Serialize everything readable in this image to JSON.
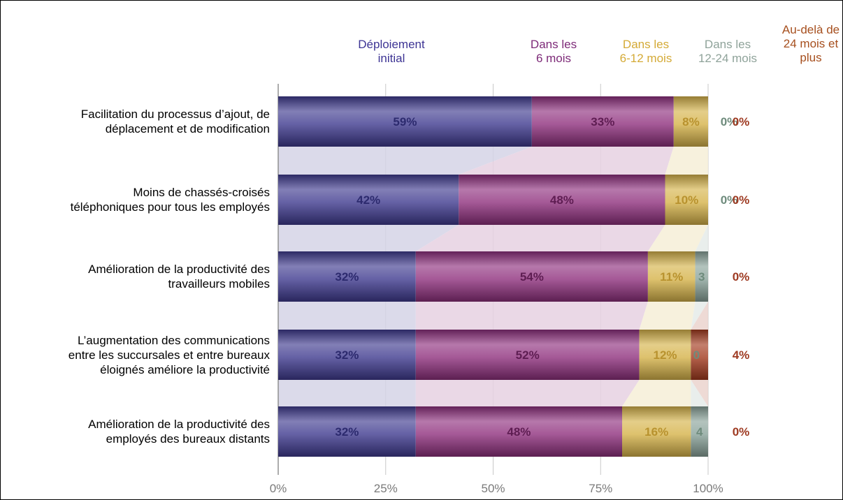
{
  "chart_data": {
    "type": "bar",
    "orientation": "horizontal",
    "stacked": true,
    "categories": [
      "Facilitation du processus d’ajout, de\ndéplacement et de modification",
      "Moins de chassés-croisés\ntéléphoniques pour tous les employés",
      "Amélioration de la productivité des\ntravailleurs mobiles",
      "L’augmentation des communications\nentre les succursales et entre bureaux\néloignés améliore la productivité",
      "Amélioration de la productivité des\nemployés des bureaux distants"
    ],
    "series": [
      {
        "name": "Déploiement\ninitial",
        "color": "#3f3a8f",
        "values": [
          59,
          42,
          32,
          32,
          32
        ],
        "labels": [
          "59%",
          "42%",
          "32%",
          "32%",
          "32%"
        ]
      },
      {
        "name": "Dans les\n6 mois",
        "color": "#8e2f7d",
        "values": [
          33,
          48,
          54,
          52,
          48
        ],
        "labels": [
          "33%",
          "48%",
          "54%",
          "52%",
          "48%"
        ]
      },
      {
        "name": "Dans les\n6-12 mois",
        "color": "#d6b34a",
        "values": [
          8,
          10,
          11,
          12,
          16
        ],
        "labels": [
          "8%",
          "10%",
          "11%",
          "12%",
          "16%"
        ]
      },
      {
        "name": "Dans les\n12-24 mois",
        "color": "#8aa39a",
        "values": [
          0,
          0,
          3,
          0,
          4
        ],
        "labels": [
          "0%",
          "0%",
          "3",
          "0",
          "4"
        ]
      },
      {
        "name": "Au-delà de\n24 mois et\nplus",
        "color": "#a33a1e",
        "values": [
          0,
          0,
          0,
          4,
          0
        ],
        "labels": [
          "0%",
          "0%",
          "0%",
          "4%",
          "0%"
        ]
      }
    ],
    "xlim": [
      0,
      100
    ],
    "xticks": [
      "0%",
      "25%",
      "50%",
      "75%",
      "100%"
    ],
    "grid": true,
    "legend_position": "top"
  }
}
